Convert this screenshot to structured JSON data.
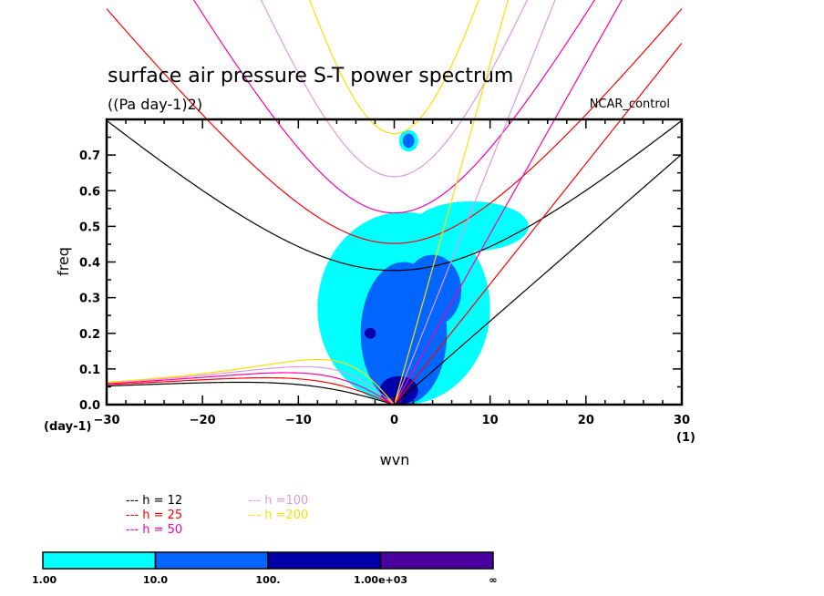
{
  "chart_data": {
    "type": "heatmap",
    "title": "surface air pressure S-T power spectrum",
    "subtitle": "((Pa day-1)2)",
    "annotation_right": "NCAR_control",
    "xlabel": "wvn",
    "ylabel": "freq",
    "x_unit_label": "(1)",
    "y_unit_label": "(day-1)",
    "xlim": [
      -30,
      30
    ],
    "ylim": [
      0,
      0.8
    ],
    "x_ticks": [
      -30,
      -20,
      -10,
      0,
      10,
      20,
      30
    ],
    "x_tick_labels": [
      "-30",
      "-20",
      "-10",
      "0",
      "10",
      "20",
      "30"
    ],
    "y_ticks": [
      0.0,
      0.1,
      0.2,
      0.3,
      0.4,
      0.5,
      0.6,
      0.7
    ],
    "y_tick_labels": [
      "0.0",
      "0.1",
      "0.2",
      "0.3",
      "0.4",
      "0.5",
      "0.6",
      "0.7"
    ],
    "contour_levels": {
      "colors": [
        "#00ffff",
        "#0066ff",
        "#0000aa",
        "#4b00a0"
      ],
      "labels": [
        "1.00",
        "10.0",
        "100.",
        "1.00e+03",
        "∞"
      ]
    },
    "power_regions": [
      {
        "level": 0,
        "center": [
          1,
          0.27
        ],
        "halfwidth_x": 9,
        "halfheight_y": 0.27
      },
      {
        "level": 0,
        "center": [
          1.5,
          0.74
        ],
        "halfwidth_x": 1,
        "halfheight_y": 0.03
      },
      {
        "level": 0,
        "center": [
          8,
          0.5
        ],
        "halfwidth_x": 6,
        "halfheight_y": 0.07
      },
      {
        "level": 1,
        "center": [
          1,
          0.2
        ],
        "halfwidth_x": 4.5,
        "halfheight_y": 0.2
      },
      {
        "level": 1,
        "center": [
          4,
          0.32
        ],
        "halfwidth_x": 3,
        "halfheight_y": 0.1
      },
      {
        "level": 1,
        "center": [
          1.5,
          0.74
        ],
        "halfwidth_x": 0.6,
        "halfheight_y": 0.02
      },
      {
        "level": 2,
        "center": [
          0.5,
          0.04
        ],
        "halfwidth_x": 2,
        "halfheight_y": 0.04
      },
      {
        "level": 2,
        "center": [
          -2.5,
          0.2
        ],
        "halfwidth_x": 0.6,
        "halfheight_y": 0.015
      },
      {
        "level": 3,
        "center": [
          0,
          0.01
        ],
        "halfwidth_x": 0.8,
        "halfheight_y": 0.01
      }
    ],
    "dispersion_legend": [
      {
        "label": "h = 12",
        "color": "#000000"
      },
      {
        "label": "h = 25",
        "color": "#ff0000"
      },
      {
        "label": "h = 50",
        "color": "#ff00aa"
      },
      {
        "label": "h =100",
        "color": "#dd99dd"
      },
      {
        "label": "h =200",
        "color": "#ffdd00"
      }
    ],
    "equivalent_depths": [
      12,
      25,
      50,
      100,
      200
    ]
  },
  "legend_dash": "---"
}
